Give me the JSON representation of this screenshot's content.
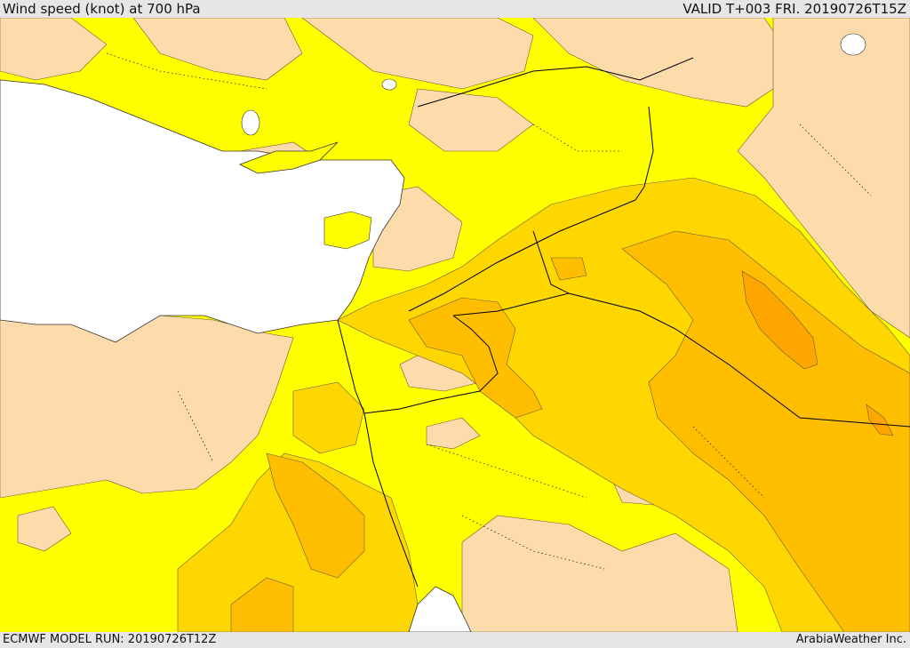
{
  "header": {
    "title": "Wind speed (knot) at 700 hPa",
    "valid": "VALID T+003 FRI. 20190726T15Z"
  },
  "footer": {
    "model_run": "ECMWF MODEL RUN: 20190726T12Z",
    "credit": "ArabiaWeather Inc."
  },
  "map": {
    "variable": "wind speed",
    "level": "700 hPa",
    "units": "knot",
    "colors": {
      "sea": "#ffffff",
      "lowest": "#fddbab",
      "low": "#ffff00",
      "medium": "#ffd700",
      "high": "#ffbf00",
      "highest": "#ffa500",
      "borders": "#000000"
    }
  }
}
